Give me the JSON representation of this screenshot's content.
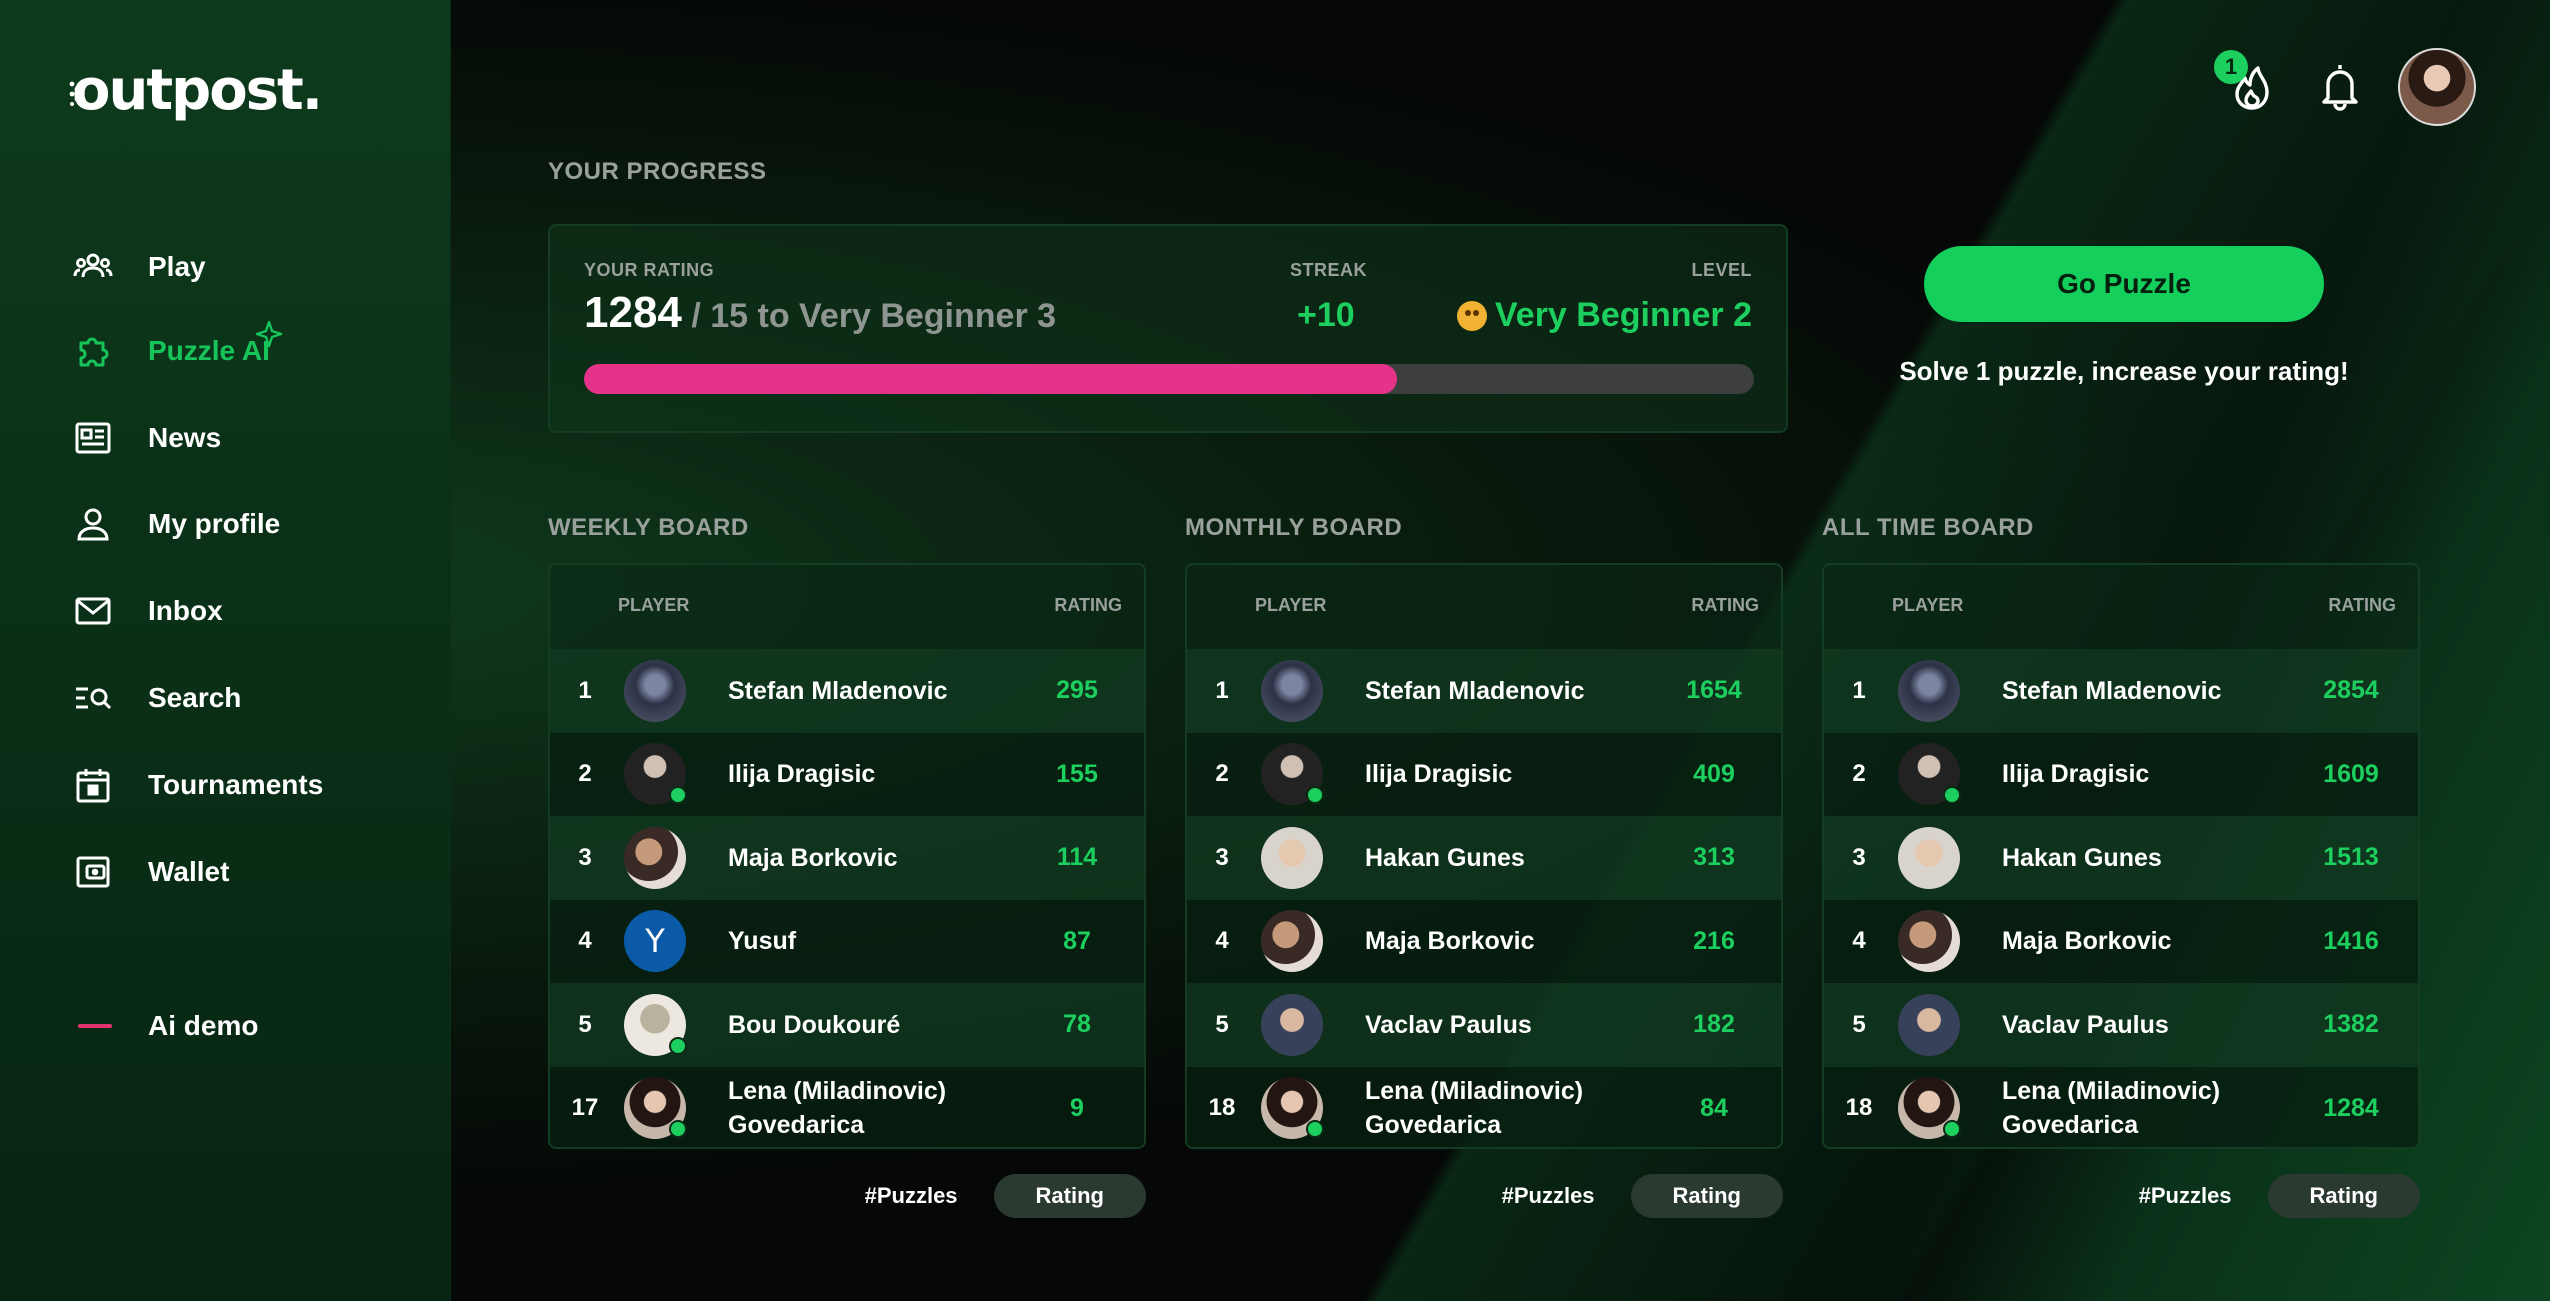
{
  "app": {
    "logo_text": "outpost."
  },
  "sidebar": {
    "items": [
      {
        "label": "Play",
        "icon": "people-group-icon"
      },
      {
        "label": "Puzzle AI",
        "icon": "puzzle-icon"
      },
      {
        "label": "News",
        "icon": "newspaper-icon"
      },
      {
        "label": "My profile",
        "icon": "user-icon"
      },
      {
        "label": "Inbox",
        "icon": "envelope-icon"
      },
      {
        "label": "Search",
        "icon": "search-list-icon"
      },
      {
        "label": "Tournaments",
        "icon": "calendar-icon"
      },
      {
        "label": "Wallet",
        "icon": "wallet-icon"
      }
    ],
    "ai_demo_label": "Ai demo"
  },
  "header": {
    "streak_count": "1",
    "icons": [
      "flame-icon",
      "bell-icon",
      "avatar"
    ]
  },
  "progress": {
    "section_title": "YOUR PROGRESS",
    "rating_label": "YOUR RATING",
    "rating_value": "1284",
    "rating_rest": " / 15 to Very Beginner 3",
    "streak_label": "STREAK",
    "streak_value": "+10",
    "level_label": "LEVEL",
    "level_value": "Very Beginner 2",
    "progress_fraction": 0.695,
    "colors": {
      "fill": "#e5338a",
      "track": "#3d3f3e",
      "accent": "#1ccf5e"
    }
  },
  "cta": {
    "button_label": "Go Puzzle",
    "hint": "Solve 1 puzzle, increase your rating!"
  },
  "boards": [
    {
      "title": "WEEKLY BOARD",
      "player_header": "PLAYER",
      "rating_header": "RATING",
      "tab_puzzles": "#Puzzles",
      "tab_rating": "Rating",
      "rows": [
        {
          "rank": "1",
          "name": "Stefan Mladenovic",
          "rating": "295",
          "online": false
        },
        {
          "rank": "2",
          "name": "Ilija Dragisic",
          "rating": "155",
          "online": true
        },
        {
          "rank": "3",
          "name": "Maja Borkovic",
          "rating": "114",
          "online": false
        },
        {
          "rank": "4",
          "name": "Yusuf",
          "rating": "87",
          "online": false,
          "initial": "Y"
        },
        {
          "rank": "5",
          "name": "Bou Doukouré",
          "rating": "78",
          "online": true
        },
        {
          "rank": "17",
          "name": "Lena (Miladinovic) Govedarica",
          "rating": "9",
          "online": true
        }
      ]
    },
    {
      "title": "MONTHLY BOARD",
      "player_header": "PLAYER",
      "rating_header": "RATING",
      "tab_puzzles": "#Puzzles",
      "tab_rating": "Rating",
      "rows": [
        {
          "rank": "1",
          "name": "Stefan Mladenovic",
          "rating": "1654",
          "online": false
        },
        {
          "rank": "2",
          "name": "Ilija Dragisic",
          "rating": "409",
          "online": true
        },
        {
          "rank": "3",
          "name": "Hakan Gunes",
          "rating": "313",
          "online": false
        },
        {
          "rank": "4",
          "name": "Maja Borkovic",
          "rating": "216",
          "online": false
        },
        {
          "rank": "5",
          "name": "Vaclav Paulus",
          "rating": "182",
          "online": false
        },
        {
          "rank": "18",
          "name": "Lena (Miladinovic) Govedarica",
          "rating": "84",
          "online": true
        }
      ]
    },
    {
      "title": "ALL TIME BOARD",
      "player_header": "PLAYER",
      "rating_header": "RATING",
      "tab_puzzles": "#Puzzles",
      "tab_rating": "Rating",
      "rows": [
        {
          "rank": "1",
          "name": "Stefan Mladenovic",
          "rating": "2854",
          "online": false
        },
        {
          "rank": "2",
          "name": "Ilija Dragisic",
          "rating": "1609",
          "online": true
        },
        {
          "rank": "3",
          "name": "Hakan Gunes",
          "rating": "1513",
          "online": false
        },
        {
          "rank": "4",
          "name": "Maja Borkovic",
          "rating": "1416",
          "online": false
        },
        {
          "rank": "5",
          "name": "Vaclav Paulus",
          "rating": "1382",
          "online": false
        },
        {
          "rank": "18",
          "name": "Lena (Miladinovic) Govedarica",
          "rating": "1284",
          "online": true
        }
      ]
    }
  ]
}
